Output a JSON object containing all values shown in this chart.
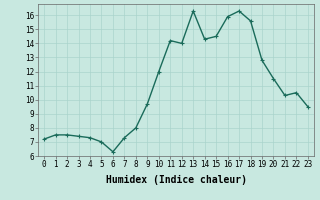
{
  "x": [
    0,
    1,
    2,
    3,
    4,
    5,
    6,
    7,
    8,
    9,
    10,
    11,
    12,
    13,
    14,
    15,
    16,
    17,
    18,
    19,
    20,
    21,
    22,
    23
  ],
  "y": [
    7.2,
    7.5,
    7.5,
    7.4,
    7.3,
    7.0,
    6.3,
    7.3,
    8.0,
    9.7,
    12.0,
    14.2,
    14.0,
    16.3,
    14.3,
    14.5,
    15.9,
    16.3,
    15.6,
    12.8,
    11.5,
    10.3,
    10.5,
    9.5
  ],
  "line_color": "#1a6b5a",
  "marker": "+",
  "marker_size": 3,
  "background_color": "#c8e8e0",
  "grid_color": "#aad4cc",
  "xlabel": "Humidex (Indice chaleur)",
  "xlim": [
    -0.5,
    23.5
  ],
  "ylim": [
    6,
    16.8
  ],
  "yticks": [
    6,
    7,
    8,
    9,
    10,
    11,
    12,
    13,
    14,
    15,
    16
  ],
  "xticks": [
    0,
    1,
    2,
    3,
    4,
    5,
    6,
    7,
    8,
    9,
    10,
    11,
    12,
    13,
    14,
    15,
    16,
    17,
    18,
    19,
    20,
    21,
    22,
    23
  ],
  "tick_fontsize": 5.5,
  "xlabel_fontsize": 7,
  "line_width": 1.0
}
